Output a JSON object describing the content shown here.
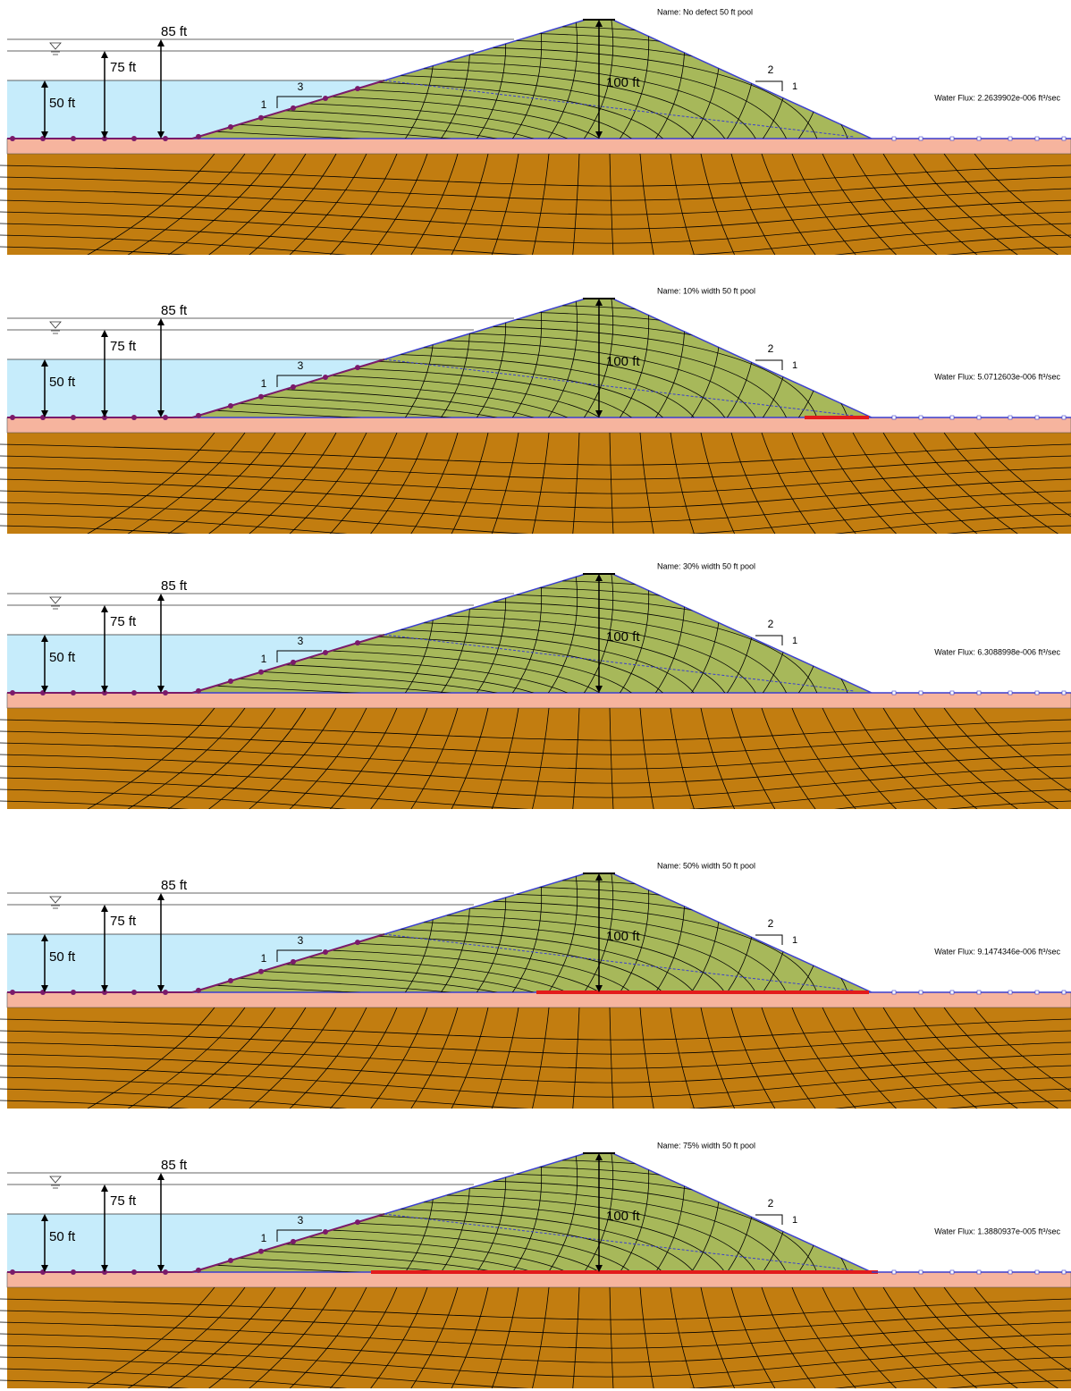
{
  "panels": [
    {
      "name": "Name: No defect 50 ft pool",
      "water_flux": "Water Flux: 2.2639902e-006 ft³/sec",
      "dims": [
        "85 ft",
        "75 ft",
        "50 ft",
        "100 ft"
      ],
      "upstream_slope": [
        "1",
        "3"
      ],
      "downstream_slope": [
        "2",
        "1"
      ]
    },
    {
      "name": "Name: 10% width 50 ft pool",
      "water_flux": "Water Flux: 5.0712603e-006 ft³/sec",
      "dims": [
        "85 ft",
        "75 ft",
        "50 ft",
        "100 ft"
      ],
      "upstream_slope": [
        "1",
        "3"
      ],
      "downstream_slope": [
        "2",
        "1"
      ]
    },
    {
      "name": "Name: 30% width 50 ft pool",
      "water_flux": "Water Flux: 6.3088998e-006 ft³/sec",
      "dims": [
        "85 ft",
        "75 ft",
        "50 ft",
        "100 ft"
      ],
      "upstream_slope": [
        "1",
        "3"
      ],
      "downstream_slope": [
        "2",
        "1"
      ]
    },
    {
      "name": "Name: 50% width 50 ft pool",
      "water_flux": "Water Flux: 9.1474346e-006 ft³/sec",
      "dims": [
        "85 ft",
        "75 ft",
        "50 ft",
        "100 ft"
      ],
      "upstream_slope": [
        "1",
        "3"
      ],
      "downstream_slope": [
        "2",
        "1"
      ]
    },
    {
      "name": "Name: 75% width 50 ft pool",
      "water_flux": "Water Flux: 1.3880937e-005 ft³/sec",
      "dims": [
        "85 ft",
        "75 ft",
        "50 ft",
        "100 ft"
      ],
      "upstream_slope": [
        "1",
        "3"
      ],
      "downstream_slope": [
        "2",
        "1"
      ]
    }
  ]
}
